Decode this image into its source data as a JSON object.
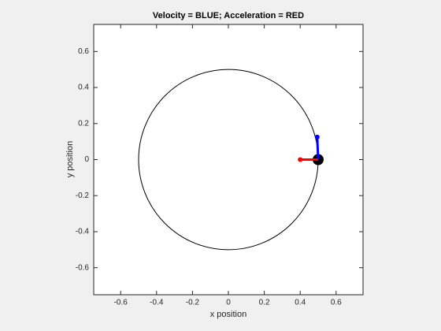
{
  "chart_data": {
    "type": "line",
    "title": "Velocity = BLUE;    Acceleration = RED",
    "xlabel": "x position",
    "ylabel": "y position",
    "xlim": [
      -0.75,
      0.75
    ],
    "ylim": [
      -0.75,
      0.75
    ],
    "xticks": [
      -0.6,
      -0.4,
      -0.2,
      0,
      0.2,
      0.4,
      0.6
    ],
    "yticks": [
      -0.6,
      -0.4,
      -0.2,
      0,
      0.2,
      0.4,
      0.6
    ],
    "orbit": {
      "radius": 0.5,
      "color": "#000000"
    },
    "series": [
      {
        "color": "#0000ff",
        "x": [
          0.5,
          0.495
        ],
        "y": [
          0,
          0.125
        ]
      },
      {
        "color": "#ff0000",
        "x": [
          0.5,
          0.4
        ],
        "y": [
          0,
          0
        ]
      }
    ],
    "ball": {
      "x": 0.5,
      "y": 0,
      "color": "#000000"
    }
  }
}
